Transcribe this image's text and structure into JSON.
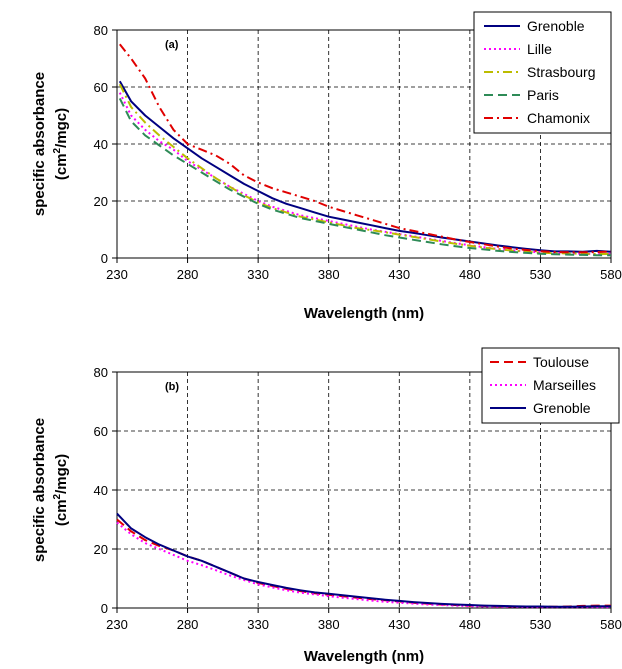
{
  "chart_data": [
    {
      "type": "line",
      "panel_label": "(a)",
      "xlabel": "Wavelength (nm)",
      "ylabel_line1": "specific absorbance",
      "ylabel_line2_pre": "(cm",
      "ylabel_line2_sup": "2",
      "ylabel_line2_post": "/mgc)",
      "xlim": [
        230,
        580
      ],
      "ylim": [
        0,
        80
      ],
      "xticks": [
        230,
        280,
        330,
        380,
        430,
        480,
        530,
        580
      ],
      "yticks": [
        0,
        20,
        40,
        60,
        80
      ],
      "grid": true,
      "legend_position": "top-right",
      "series": [
        {
          "name": "Grenoble",
          "color": "#000080",
          "dash": "solid",
          "x": [
            232,
            240,
            250,
            260,
            270,
            280,
            290,
            300,
            310,
            320,
            330,
            340,
            350,
            360,
            370,
            380,
            390,
            400,
            410,
            420,
            430,
            440,
            450,
            460,
            470,
            480,
            490,
            500,
            510,
            520,
            530,
            540,
            550,
            560,
            570,
            580
          ],
          "y": [
            62,
            55,
            50,
            46,
            42,
            38.5,
            35,
            32,
            29,
            26,
            23.5,
            21,
            19,
            17.5,
            16,
            14.5,
            13.5,
            12.5,
            11.5,
            10.5,
            9.5,
            8.8,
            8,
            7.2,
            6.5,
            5.8,
            5.1,
            4.4,
            3.8,
            3.2,
            2.7,
            2.3,
            2.3,
            2.2,
            2.5,
            2.2
          ]
        },
        {
          "name": "Lille",
          "color": "#ff00ff",
          "dash": "dotted",
          "x": [
            232,
            240,
            250,
            260,
            270,
            280,
            290,
            300,
            310,
            320,
            330,
            340,
            350,
            360,
            370,
            380,
            390,
            400,
            410,
            420,
            430,
            440,
            450,
            460,
            470,
            480,
            490,
            500,
            510,
            520,
            530,
            540,
            550,
            560,
            570,
            580
          ],
          "y": [
            58,
            50,
            45,
            41,
            38,
            34,
            31,
            28,
            25,
            22.5,
            20,
            18,
            16.5,
            15,
            14,
            13,
            12,
            11,
            10,
            9.2,
            8.4,
            7.6,
            6.8,
            6,
            5.2,
            4.5,
            3.8,
            3.2,
            2.7,
            2.3,
            2,
            1.8,
            1.6,
            1.5,
            1.4,
            1.4
          ]
        },
        {
          "name": "Strasbourg",
          "color": "#bcbc00",
          "dash": "dashdot",
          "x": [
            232,
            240,
            250,
            260,
            270,
            280,
            290,
            300,
            310,
            320,
            330,
            340,
            350,
            360,
            370,
            380,
            390,
            400,
            410,
            420,
            430,
            440,
            450,
            460,
            470,
            480,
            490,
            500,
            510,
            520,
            530,
            540,
            550,
            560,
            570,
            580
          ],
          "y": [
            61,
            53,
            47.5,
            43,
            39,
            35,
            31.5,
            28,
            25,
            22,
            19.5,
            17.5,
            16,
            14.5,
            13.5,
            12.5,
            11.5,
            10.5,
            9.8,
            9,
            8.2,
            7.4,
            6.6,
            5.8,
            5,
            4.3,
            3.6,
            3.1,
            2.6,
            2.2,
            1.9,
            1.7,
            1.6,
            1.5,
            1.4,
            1.4
          ]
        },
        {
          "name": "Paris",
          "color": "#2e8b57",
          "dash": "dashed",
          "x": [
            232,
            240,
            250,
            260,
            270,
            280,
            290,
            300,
            310,
            320,
            330,
            340,
            350,
            360,
            370,
            380,
            390,
            400,
            410,
            420,
            430,
            440,
            450,
            460,
            470,
            480,
            490,
            500,
            510,
            520,
            530,
            540,
            550,
            560,
            570,
            580
          ],
          "y": [
            56,
            48,
            43,
            39.5,
            36,
            33,
            30,
            27,
            24,
            21.5,
            19,
            17,
            15.5,
            14,
            13,
            12,
            11,
            10,
            9,
            8,
            7.2,
            6.4,
            5.6,
            4.8,
            4.1,
            3.5,
            3,
            2.5,
            2.1,
            1.8,
            1.5,
            1.3,
            1.2,
            1.1,
            1,
            1
          ]
        },
        {
          "name": "Chamonix",
          "color": "#e00000",
          "dash": "dashdot",
          "x": [
            232,
            240,
            250,
            260,
            270,
            280,
            290,
            300,
            310,
            320,
            330,
            340,
            350,
            360,
            370,
            380,
            390,
            400,
            410,
            420,
            430,
            440,
            450,
            460,
            470,
            480,
            490,
            500,
            510,
            520,
            530,
            540,
            550,
            560,
            570,
            580
          ],
          "y": [
            75,
            70,
            63,
            53,
            45,
            40,
            38,
            36,
            33,
            29,
            26.5,
            24.5,
            23,
            21.5,
            20,
            18,
            16.5,
            15,
            13.5,
            12,
            10.5,
            9.5,
            8.5,
            7.5,
            6.5,
            5.6,
            4.8,
            4,
            3.3,
            2.8,
            2.4,
            2.1,
            2,
            2,
            2.1,
            2.2
          ]
        }
      ]
    },
    {
      "type": "line",
      "panel_label": "(b)",
      "xlabel": "Wavelength (nm)",
      "ylabel_line1": "specific absorbance",
      "ylabel_line2_pre": "(cm",
      "ylabel_line2_sup": "2",
      "ylabel_line2_post": "/mgc)",
      "xlim": [
        230,
        580
      ],
      "ylim": [
        0,
        80
      ],
      "xticks": [
        230,
        280,
        330,
        380,
        430,
        480,
        530,
        580
      ],
      "yticks": [
        0,
        20,
        40,
        60,
        80
      ],
      "grid": true,
      "legend_position": "top-right",
      "series": [
        {
          "name": "Toulouse",
          "color": "#e00000",
          "dash": "dashed",
          "x": [
            230,
            240,
            250,
            260,
            270,
            280,
            290,
            300,
            310,
            320,
            330,
            340,
            350,
            360,
            370,
            380,
            390,
            400,
            410,
            420,
            430,
            440,
            450,
            460,
            470,
            480,
            490,
            500,
            510,
            520,
            530,
            540,
            550,
            560,
            570,
            580
          ],
          "y": [
            30,
            26,
            23,
            21,
            19.5,
            17.5,
            16,
            14,
            12,
            10,
            8.5,
            7.5,
            6.5,
            5.7,
            5,
            4.5,
            4,
            3.5,
            3,
            2.6,
            2.2,
            1.8,
            1.5,
            1.2,
            1,
            0.8,
            0.7,
            0.6,
            0.5,
            0.5,
            0.4,
            0.4,
            0.5,
            0.7,
            0.8,
            0.8
          ]
        },
        {
          "name": "Marseilles",
          "color": "#ff00ff",
          "dash": "dotted",
          "x": [
            230,
            240,
            250,
            260,
            270,
            280,
            290,
            300,
            310,
            320,
            330,
            340,
            350,
            360,
            370,
            380,
            390,
            400,
            410,
            420,
            430,
            440,
            450,
            460,
            470,
            480,
            490,
            500,
            510,
            520,
            530,
            540,
            550,
            560,
            570,
            580
          ],
          "y": [
            29,
            25,
            22,
            20,
            18,
            16,
            14.5,
            12.8,
            11,
            9.5,
            8,
            7,
            6,
            5.2,
            4.6,
            4,
            3.5,
            3,
            2.5,
            2.1,
            1.8,
            1.5,
            1.2,
            1,
            0.8,
            0.6,
            0.5,
            0.4,
            0.4,
            0.3,
            0.3,
            0.3,
            0.3,
            0.3,
            0.3,
            0.3
          ]
        },
        {
          "name": "Grenoble",
          "color": "#000080",
          "dash": "solid",
          "x": [
            230,
            240,
            250,
            260,
            270,
            280,
            290,
            300,
            310,
            320,
            330,
            340,
            350,
            360,
            370,
            380,
            390,
            400,
            410,
            420,
            430,
            440,
            450,
            460,
            470,
            480,
            490,
            500,
            510,
            520,
            530,
            540,
            550,
            560,
            570,
            580
          ],
          "y": [
            32,
            27,
            24,
            21.5,
            19.5,
            17.5,
            16,
            14,
            12,
            10,
            8.8,
            7.8,
            6.8,
            6,
            5.3,
            4.8,
            4.3,
            3.8,
            3.3,
            2.8,
            2.4,
            2,
            1.7,
            1.4,
            1.2,
            1,
            0.8,
            0.7,
            0.6,
            0.5,
            0.5,
            0.4,
            0.4,
            0.5,
            0.6,
            0.6
          ]
        }
      ]
    }
  ]
}
